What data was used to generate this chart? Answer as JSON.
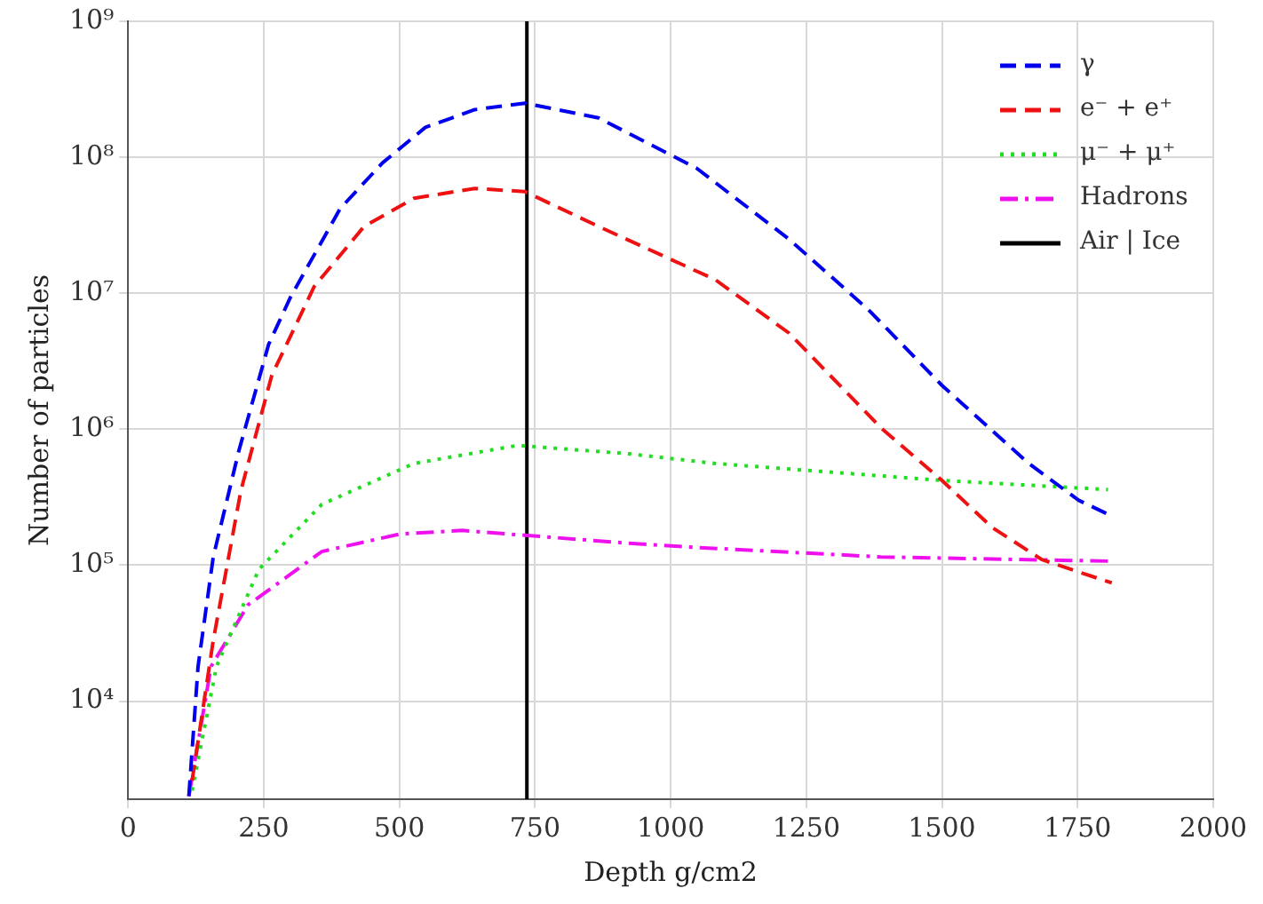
{
  "chart_data": {
    "type": "line",
    "xlabel": "Depth g/cm2",
    "ylabel": "Number of particles",
    "log": "y",
    "grid": true,
    "legend": "top right",
    "xlim": [
      0,
      2000
    ],
    "xticks": [
      0,
      250,
      500,
      750,
      1000,
      1250,
      1500,
      1750,
      2000
    ],
    "ylim": [
      1900,
      1000000000
    ],
    "yticks": [
      {
        "value": 10000,
        "label": "10⁴"
      },
      {
        "value": 100000,
        "label": "10⁵"
      },
      {
        "value": 1000000,
        "label": "10⁶"
      },
      {
        "value": 10000000,
        "label": "10⁷"
      },
      {
        "value": 100000000,
        "label": "10⁸"
      },
      {
        "value": 1000000000,
        "label": "10⁹"
      }
    ],
    "series": [
      {
        "name": "γ",
        "color": "#0000ee",
        "line_style": "dashed",
        "x": [
          112,
          129,
          157,
          204,
          259,
          299,
          391,
          469,
          548,
          639,
          731,
          867,
          1048,
          1218,
          1364,
          1500,
          1660,
          1752,
          1813
        ],
        "values": [
          2000,
          18000,
          115000,
          690000,
          4200000,
          9300000,
          42000000,
          91000000,
          166000000,
          224000000,
          250000000,
          195000000,
          83000000,
          25000000,
          7600000,
          2100000,
          560000,
          300000,
          230000
        ]
      },
      {
        "name": "e⁻ + e⁺",
        "color": "#ee1111",
        "line_style": "dashed",
        "x": [
          118,
          157,
          208,
          265,
          343,
          435,
          527,
          639,
          731,
          867,
          1082,
          1218,
          1388,
          1500,
          1592,
          1684,
          1813
        ],
        "values": [
          2600,
          28000,
          355000,
          2500000,
          11200000,
          31000000,
          50000000,
          59000000,
          56000000,
          31000000,
          12600000,
          5100000,
          1020000,
          420000,
          190000,
          110000,
          74000
        ]
      },
      {
        "name": "μ⁻ + μ⁺",
        "color": "#22dd22",
        "line_style": "dotted",
        "x": [
          118,
          163,
          241,
          357,
          527,
          718,
          922,
          1082,
          1275,
          1500,
          1806
        ],
        "values": [
          2200,
          18000,
          93000,
          280000,
          560000,
          760000,
          660000,
          560000,
          490000,
          420000,
          360000
        ]
      },
      {
        "name": "Hadrons",
        "color": "#ee11ee",
        "line_style": "dashdot",
        "x": [
          112,
          153,
          221,
          357,
          503,
          616,
          731,
          922,
          1048,
          1388,
          1813
        ],
        "values": [
          2000,
          18000,
          51000,
          126000,
          170000,
          180000,
          166000,
          145000,
          135000,
          115000,
          107000
        ]
      },
      {
        "name": "Air | Ice",
        "color": "#000000",
        "line_style": "solid",
        "x": [
          735,
          735
        ],
        "values": [
          1900,
          1000000000
        ]
      }
    ]
  }
}
